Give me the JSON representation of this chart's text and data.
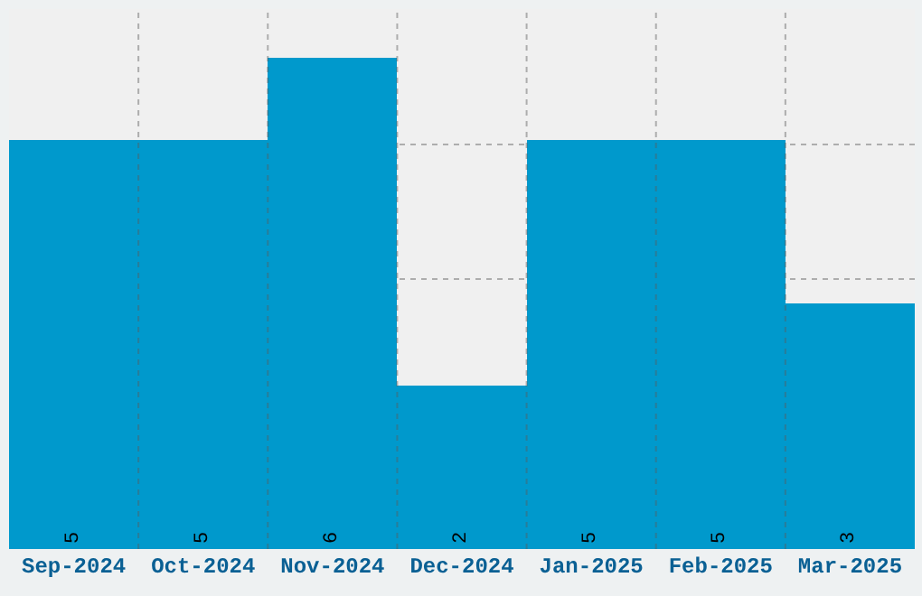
{
  "chart_data": {
    "type": "bar",
    "categories": [
      "Sep-2024",
      "Oct-2024",
      "Nov-2024",
      "Dec-2024",
      "Jan-2025",
      "Feb-2025",
      "Mar-2025"
    ],
    "values": [
      5,
      5,
      6,
      2,
      5,
      5,
      3
    ],
    "color": "#0099cc",
    "grid": true,
    "data_labels": true,
    "tick_labels": "x"
  }
}
